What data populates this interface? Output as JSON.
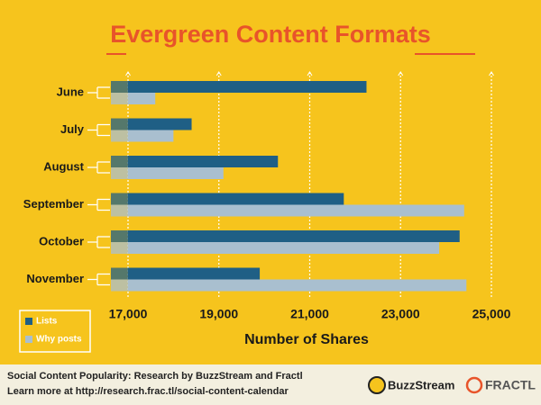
{
  "chart_data": {
    "type": "hbar",
    "title": "Evergreen Content Formats",
    "categories": [
      "June",
      "July",
      "August",
      "September",
      "October",
      "November"
    ],
    "series": [
      {
        "name": "Lists",
        "color": "#1f5f85",
        "values": [
          22250,
          18400,
          20300,
          21750,
          24300,
          19900
        ]
      },
      {
        "name": "Why posts",
        "color": "#a9bfcf",
        "values": [
          17600,
          18000,
          19100,
          24400,
          23850,
          24450
        ]
      }
    ],
    "xlim": [
      17000,
      25000
    ],
    "xticks": [
      {
        "value": 17000,
        "label": "17,000"
      },
      {
        "value": 19000,
        "label": "19,000"
      },
      {
        "value": 21000,
        "label": "21,000"
      },
      {
        "value": 23000,
        "label": "23,000"
      },
      {
        "value": 25000,
        "label": "25,000"
      }
    ],
    "x_label": "Number of Shares",
    "grid": true,
    "legend": "lower left",
    "footer": [
      "Social Content Popularity: Research by BuzzStream and Fractl",
      "Learn more at http://research.frac.tl/social-content-calendar"
    ],
    "logos": [
      "BuzzStream",
      "FRACTL"
    ]
  }
}
